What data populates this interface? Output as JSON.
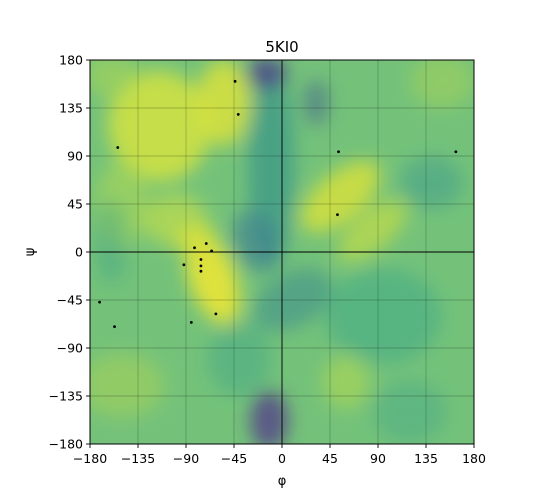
{
  "chart_data": {
    "type": "scatter",
    "title": "5KI0",
    "xlabel": "φ",
    "ylabel": "ψ",
    "xlim": [
      -180,
      180
    ],
    "ylim": [
      -180,
      180
    ],
    "xticks": [
      -180,
      -135,
      -90,
      -45,
      0,
      45,
      90,
      135,
      180
    ],
    "yticks": [
      -180,
      -135,
      -90,
      -45,
      0,
      45,
      90,
      135,
      180
    ],
    "grid": true,
    "background": "ramachandran-density-heatmap",
    "colormap": "viridis",
    "point_color": "#000000",
    "points": [
      {
        "x": -44,
        "y": 160
      },
      {
        "x": -41,
        "y": 129
      },
      {
        "x": -154,
        "y": 98
      },
      {
        "x": 53,
        "y": 94
      },
      {
        "x": 163,
        "y": 94
      },
      {
        "x": 52,
        "y": 35
      },
      {
        "x": -71,
        "y": 8
      },
      {
        "x": -82,
        "y": 4
      },
      {
        "x": -66,
        "y": 1
      },
      {
        "x": -76,
        "y": -7
      },
      {
        "x": -92,
        "y": -12
      },
      {
        "x": -76,
        "y": -13
      },
      {
        "x": -76,
        "y": -18
      },
      {
        "x": -171,
        "y": -47
      },
      {
        "x": -62,
        "y": -58
      },
      {
        "x": -85,
        "y": -66
      },
      {
        "x": -157,
        "y": -70
      }
    ]
  }
}
